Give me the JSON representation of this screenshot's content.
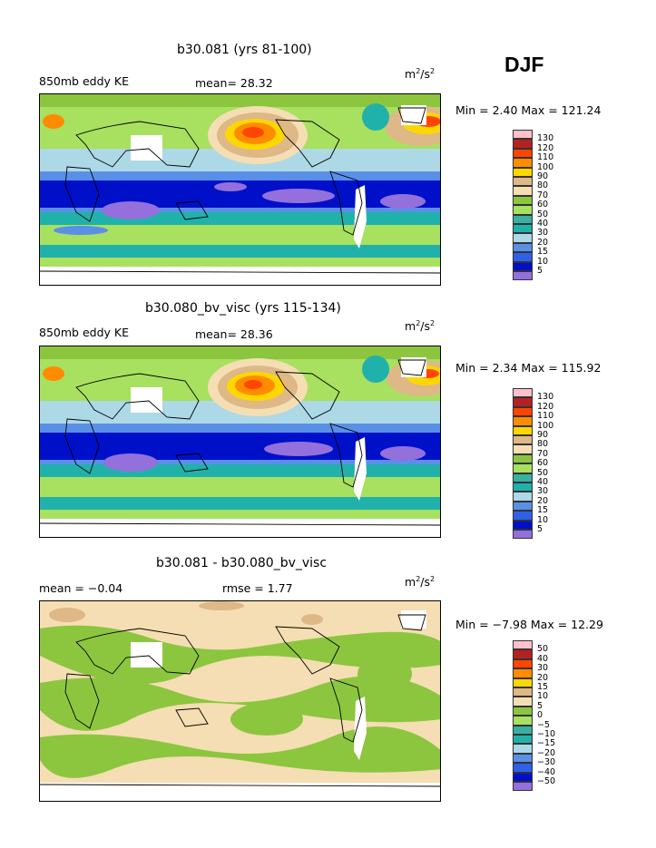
{
  "season": "DJF",
  "panels": [
    {
      "title": "b30.081 (yrs 81-100)",
      "left_label": "850mb eddy KE",
      "center_label": "mean=  28.32",
      "units": "m",
      "units_power": "2",
      "units_tail": "/s",
      "units_tail_power": "2",
      "minmax": "Min =   2.40 Max = 121.24"
    },
    {
      "title": "b30.080_bv_visc (yrs 115-134)",
      "left_label": "850mb eddy KE",
      "center_label": "mean=  28.36",
      "units": "m",
      "units_power": "2",
      "units_tail": "/s",
      "units_tail_power": "2",
      "minmax": "Min =   2.34 Max = 115.92"
    },
    {
      "title": "b30.081 - b30.080_bv_visc",
      "left_label": "mean =   −0.04",
      "center_label": "rmse =   1.77",
      "units": "m",
      "units_power": "2",
      "units_tail": "/s",
      "units_tail_power": "2",
      "minmax": "Min =  −7.98 Max =  12.29"
    }
  ],
  "chart_data": [
    {
      "type": "heatmap",
      "title": "b30.081 (yrs 81-100)",
      "variable": "850mb eddy KE",
      "mean": 28.32,
      "min": 2.4,
      "max": 121.24,
      "units": "m^2/s^2",
      "colorbar_levels": [
        "5",
        "10",
        "15",
        "20",
        "30",
        "40",
        "50",
        "60",
        "70",
        "80",
        "90",
        "100",
        "110",
        "120",
        "130"
      ],
      "colorbar_colors": [
        "#9370db",
        "#0010c8",
        "#2f60e8",
        "#5a8fe8",
        "#add8e6",
        "#20b2aa",
        "#3ab0a0",
        "#a8e060",
        "#8cc63f",
        "#f5deb3",
        "#deb887",
        "#ffd700",
        "#ff8c00",
        "#ff4500",
        "#b22222",
        "#ffc0cb",
        "#ff1493"
      ]
    },
    {
      "type": "heatmap",
      "title": "b30.080_bv_visc (yrs 115-134)",
      "variable": "850mb eddy KE",
      "mean": 28.36,
      "min": 2.34,
      "max": 115.92,
      "units": "m^2/s^2",
      "colorbar_levels": [
        "5",
        "10",
        "15",
        "20",
        "30",
        "40",
        "50",
        "60",
        "70",
        "80",
        "90",
        "100",
        "110",
        "120",
        "130"
      ]
    },
    {
      "type": "heatmap",
      "title": "b30.081 - b30.080_bv_visc",
      "mean": -0.04,
      "rmse": 1.77,
      "min": -7.98,
      "max": 12.29,
      "units": "m^2/s^2",
      "colorbar_levels": [
        "−50",
        "−40",
        "−30",
        "−20",
        "−15",
        "−10",
        "−5",
        "0",
        "5",
        "10",
        "15",
        "20",
        "30",
        "40",
        "50"
      ]
    }
  ]
}
